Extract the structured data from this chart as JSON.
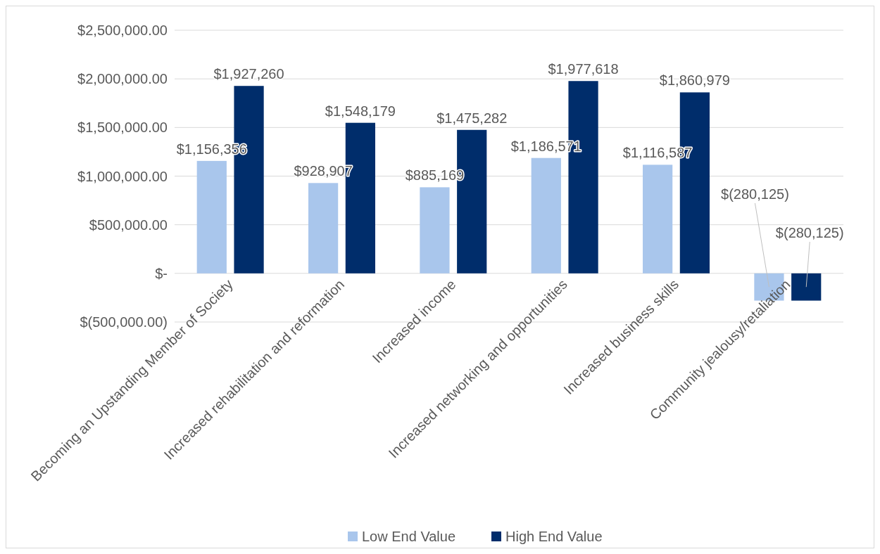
{
  "chart_data": {
    "type": "bar",
    "categories": [
      "Becoming an Upstanding Member of Society",
      "Increased rehabilitation and reformation",
      "Increased income",
      "Increased networking and opportunities",
      "Increased business skills",
      "Community jealousy/retaliation"
    ],
    "series": [
      {
        "name": "Low End Value",
        "color": "#a9c6ec",
        "values": [
          1156356,
          928907,
          885169,
          1186571,
          1116587,
          -280125
        ],
        "value_labels": [
          "$1,156,356",
          "$928,907",
          "$885,169",
          "$1,186,571",
          "$1,116,587",
          "$(280,125)"
        ]
      },
      {
        "name": "High End Value",
        "color": "#002d6b",
        "values": [
          1927260,
          1548179,
          1475282,
          1977618,
          1860979,
          -280125
        ],
        "value_labels": [
          "$1,927,260",
          "$1,548,179",
          "$1,475,282",
          "$1,977,618",
          "$1,860,979",
          "$(280,125)"
        ]
      }
    ],
    "ylim": [
      -500000,
      2500000
    ],
    "yticks": [
      {
        "value": -500000,
        "label": "$(500,000.00)"
      },
      {
        "value": 0,
        "label": "$-"
      },
      {
        "value": 500000,
        "label": "$500,000.00"
      },
      {
        "value": 1000000,
        "label": "$1,000,000.00"
      },
      {
        "value": 1500000,
        "label": "$1,500,000.00"
      },
      {
        "value": 2000000,
        "label": "$2,000,000.00"
      },
      {
        "value": 2500000,
        "label": "$2,500,000.00"
      }
    ],
    "grid": "y",
    "legend": "bottom"
  }
}
